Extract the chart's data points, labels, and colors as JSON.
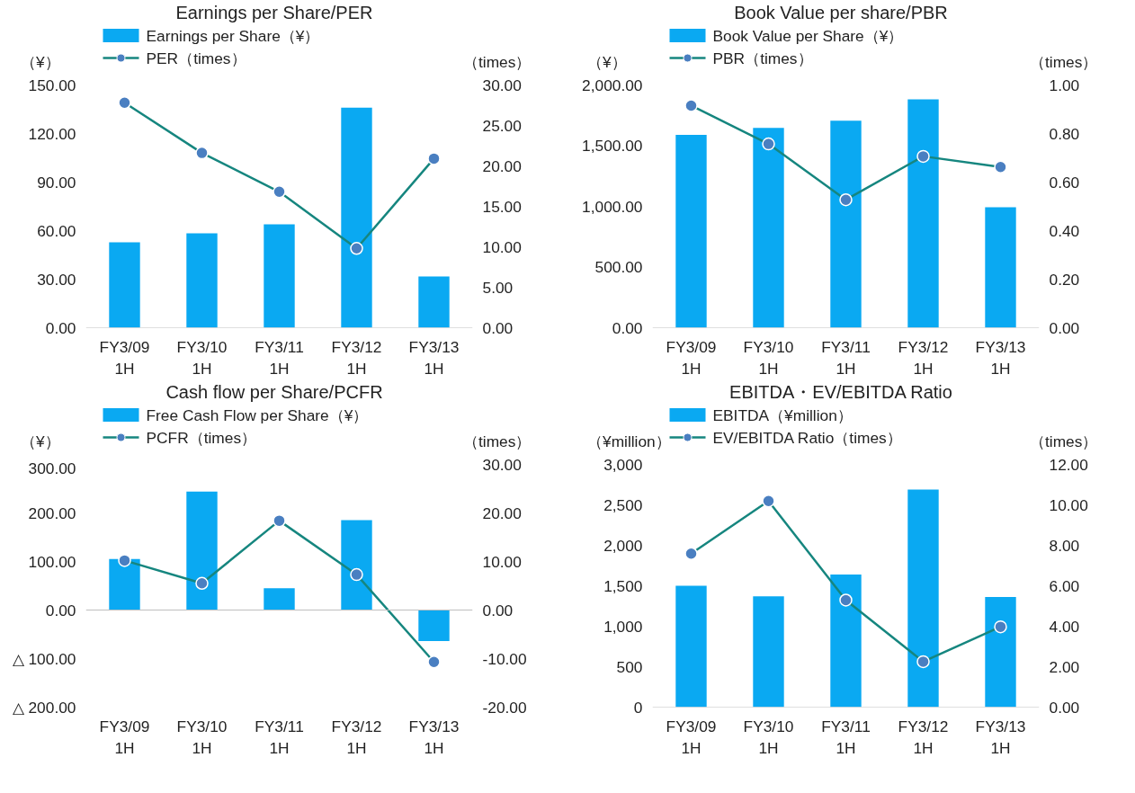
{
  "chart_data": [
    {
      "type": "bar",
      "title": "Earnings per Share/PER",
      "ylabel": "（¥）",
      "y2label": "（times）",
      "categories": [
        "FY3/09\n1H",
        "FY3/10\n1H",
        "FY3/11\n1H",
        "FY3/12\n1H",
        "FY3/13\n1H"
      ],
      "legend": "top",
      "marker": "circle",
      "series": [
        {
          "name": "Earnings per Share（¥）",
          "type": "bar",
          "color": "#0aa9f2",
          "values": [
            52.8,
            58.3,
            63.9,
            136,
            31.7
          ]
        },
        {
          "name": "PER（times）",
          "type": "line",
          "axis": "y2",
          "color": "#16867f",
          "values": [
            27.8,
            21.6,
            16.8,
            9.8,
            20.9
          ]
        }
      ],
      "ylim": [
        0,
        150
      ],
      "yticks": [
        {
          "value": 0,
          "label": "0.00"
        },
        {
          "value": 30,
          "label": "30.00"
        },
        {
          "value": 60,
          "label": "60.00"
        },
        {
          "value": 90,
          "label": "90.00"
        },
        {
          "value": 120,
          "label": "120.00"
        },
        {
          "value": 150,
          "label": "150.00"
        }
      ],
      "y2lim": [
        0,
        30
      ],
      "y2ticks": [
        {
          "value": 0,
          "label": "0.00"
        },
        {
          "value": 5,
          "label": "5.00"
        },
        {
          "value": 10,
          "label": "10.00"
        },
        {
          "value": 15,
          "label": "15.00"
        },
        {
          "value": 20,
          "label": "20.00"
        },
        {
          "value": 25,
          "label": "25.00"
        },
        {
          "value": 30,
          "label": "30.00"
        }
      ]
    },
    {
      "type": "bar",
      "title": "Book Value per share/PBR",
      "ylabel": "（¥）",
      "y2label": "（times）",
      "categories": [
        "FY3/09\n1H",
        "FY3/10\n1H",
        "FY3/11\n1H",
        "FY3/12\n1H",
        "FY3/13\n1H"
      ],
      "legend": "top",
      "marker": "circle",
      "series": [
        {
          "name": "Book Value per Share（¥）",
          "type": "bar",
          "color": "#0aa9f2",
          "values": [
            1588,
            1647,
            1706,
            1882,
            993
          ]
        },
        {
          "name": "PBR（times）",
          "type": "line",
          "axis": "y2",
          "color": "#16867f",
          "values": [
            0.915,
            0.757,
            0.527,
            0.706,
            0.662
          ]
        }
      ],
      "ylim": [
        0,
        2000
      ],
      "yticks": [
        {
          "value": 0,
          "label": "0.00"
        },
        {
          "value": 500,
          "label": "500.00"
        },
        {
          "value": 1000,
          "label": "1,000.00"
        },
        {
          "value": 1500,
          "label": "1,500.00"
        },
        {
          "value": 2000,
          "label": "2,000.00"
        }
      ],
      "y2lim": [
        0,
        1
      ],
      "y2ticks": [
        {
          "value": 0,
          "label": "0.00"
        },
        {
          "value": 0.2,
          "label": "0.20"
        },
        {
          "value": 0.4,
          "label": "0.40"
        },
        {
          "value": 0.6,
          "label": "0.60"
        },
        {
          "value": 0.8,
          "label": "0.80"
        },
        {
          "value": 1,
          "label": "1.00"
        }
      ]
    },
    {
      "type": "bar",
      "title": "Cash flow per Share/PCFR",
      "ylabel": "（¥）",
      "y2label": "（times）",
      "categories": [
        "FY3/09\n1H",
        "FY3/10\n1H",
        "FY3/11\n1H",
        "FY3/12\n1H",
        "FY3/13\n1H"
      ],
      "legend": "top",
      "marker": "circle",
      "series": [
        {
          "name": "Free Cash Flow per Share（¥）",
          "type": "bar",
          "color": "#0aa9f2",
          "values": [
            105,
            244,
            45,
            185,
            -64
          ]
        },
        {
          "name": "PCFR（times）",
          "type": "line",
          "axis": "y2",
          "color": "#16867f",
          "values": [
            10.2,
            5.5,
            18.4,
            7.3,
            -10.7
          ]
        }
      ],
      "ylim": [
        -200,
        300
      ],
      "yticks": [
        {
          "value": -200,
          "label": "△ 200.00"
        },
        {
          "value": -100,
          "label": "△ 100.00"
        },
        {
          "value": 0,
          "label": "0.00"
        },
        {
          "value": 100,
          "label": "100.00"
        },
        {
          "value": 200,
          "label": "200.00"
        },
        {
          "value": 300,
          "label": "300.00"
        }
      ],
      "y2lim": [
        -20,
        30
      ],
      "y2ticks": [
        {
          "value": -20,
          "label": "-20.00"
        },
        {
          "value": -10,
          "label": "-10.00"
        },
        {
          "value": 0,
          "label": "0.00"
        },
        {
          "value": 10,
          "label": "10.00"
        },
        {
          "value": 20,
          "label": "20.00"
        },
        {
          "value": 30,
          "label": "30.00"
        }
      ]
    },
    {
      "type": "bar",
      "title": "EBITDA・EV/EBITDA Ratio",
      "ylabel": "（¥million）",
      "y2label": "（times）",
      "categories": [
        "FY3/09\n1H",
        "FY3/10\n1H",
        "FY3/11\n1H",
        "FY3/12\n1H",
        "FY3/13\n1H"
      ],
      "legend": "top",
      "marker": "circle",
      "series": [
        {
          "name": "EBITDA（¥million）",
          "type": "bar",
          "color": "#0aa9f2",
          "values": [
            1500,
            1370,
            1640,
            2690,
            1360
          ]
        },
        {
          "name": "EV/EBITDA Ratio（times）",
          "type": "line",
          "axis": "y2",
          "color": "#16867f",
          "values": [
            7.59,
            10.19,
            5.29,
            2.25,
            3.97
          ]
        }
      ],
      "ylim": [
        0,
        3000
      ],
      "yticks": [
        {
          "value": 0,
          "label": "0"
        },
        {
          "value": 500,
          "label": "500"
        },
        {
          "value": 1000,
          "label": "1,000"
        },
        {
          "value": 1500,
          "label": "1,500"
        },
        {
          "value": 2000,
          "label": "2,000"
        },
        {
          "value": 2500,
          "label": "2,500"
        },
        {
          "value": 3000,
          "label": "3,000"
        }
      ],
      "y2lim": [
        0,
        12
      ],
      "y2ticks": [
        {
          "value": 0,
          "label": "0.00"
        },
        {
          "value": 2,
          "label": "2.00"
        },
        {
          "value": 4,
          "label": "4.00"
        },
        {
          "value": 6,
          "label": "6.00"
        },
        {
          "value": 8,
          "label": "8.00"
        },
        {
          "value": 10,
          "label": "10.00"
        },
        {
          "value": 12,
          "label": "12.00"
        }
      ]
    }
  ]
}
